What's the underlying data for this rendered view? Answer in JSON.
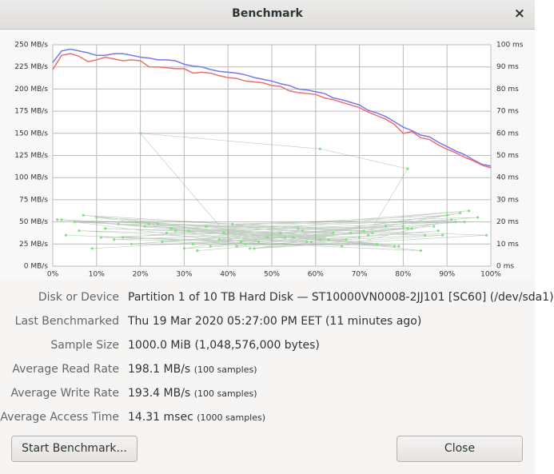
{
  "window": {
    "title": "Benchmark",
    "close": "×"
  },
  "chart_data": {
    "type": "line",
    "xlim": [
      0,
      100
    ],
    "xticks": [
      {
        "value": 0,
        "label": "0%"
      },
      {
        "value": 10,
        "label": "10%"
      },
      {
        "value": 20,
        "label": "20%"
      },
      {
        "value": 30,
        "label": "30%"
      },
      {
        "value": 40,
        "label": "40%"
      },
      {
        "value": 50,
        "label": "50%"
      },
      {
        "value": 60,
        "label": "60%"
      },
      {
        "value": 70,
        "label": "70%"
      },
      {
        "value": 80,
        "label": "80%"
      },
      {
        "value": 90,
        "label": "90%"
      },
      {
        "value": 100,
        "label": "100%"
      }
    ],
    "ylim": [
      0,
      250
    ],
    "yticks": [
      {
        "value": 0,
        "label": "0 MB/s"
      },
      {
        "value": 25,
        "label": "25 MB/s"
      },
      {
        "value": 50,
        "label": "50 MB/s"
      },
      {
        "value": 75,
        "label": "75 MB/s"
      },
      {
        "value": 100,
        "label": "100 MB/s"
      },
      {
        "value": 125,
        "label": "125 MB/s"
      },
      {
        "value": 150,
        "label": "150 MB/s"
      },
      {
        "value": 175,
        "label": "175 MB/s"
      },
      {
        "value": 200,
        "label": "200 MB/s"
      },
      {
        "value": 225,
        "label": "225 MB/s"
      },
      {
        "value": 250,
        "label": "250 MB/s"
      }
    ],
    "y2lim": [
      0,
      100
    ],
    "y2ticks": [
      {
        "value": 0,
        "label": "0 ms"
      },
      {
        "value": 10,
        "label": "10 ms"
      },
      {
        "value": 20,
        "label": "20 ms"
      },
      {
        "value": 30,
        "label": "30 ms"
      },
      {
        "value": 40,
        "label": "40 ms"
      },
      {
        "value": 50,
        "label": "50 ms"
      },
      {
        "value": 60,
        "label": "60 ms"
      },
      {
        "value": 70,
        "label": "70 ms"
      },
      {
        "value": 80,
        "label": "80 ms"
      },
      {
        "value": 90,
        "label": "90 ms"
      },
      {
        "value": 100,
        "label": "100 ms"
      }
    ],
    "grid": true,
    "series": [
      {
        "type": "line",
        "color": "#7777ee",
        "x": [
          0,
          2,
          4,
          6,
          8,
          10,
          12,
          14,
          16,
          18,
          20,
          22,
          24,
          26,
          28,
          30,
          32,
          34,
          36,
          38,
          40,
          42,
          44,
          46,
          48,
          50,
          52,
          54,
          56,
          58,
          60,
          62,
          64,
          66,
          68,
          70,
          72,
          74,
          76,
          78,
          80,
          82,
          84,
          86,
          88,
          90,
          92,
          94,
          96,
          98,
          100
        ],
        "values": [
          230,
          243,
          245,
          243,
          241,
          238,
          238,
          240,
          240,
          238,
          236,
          235,
          233,
          233,
          232,
          228,
          226,
          225,
          222,
          220,
          219,
          218,
          216,
          213,
          211,
          209,
          206,
          204,
          200,
          199,
          197,
          195,
          190,
          188,
          185,
          182,
          176,
          173,
          169,
          163,
          157,
          153,
          148,
          146,
          140,
          135,
          130,
          126,
          120,
          115,
          113
        ]
      },
      {
        "type": "line",
        "color": "#ee6e6e",
        "x": [
          0,
          2,
          4,
          6,
          8,
          10,
          12,
          14,
          16,
          18,
          20,
          22,
          24,
          26,
          28,
          30,
          32,
          34,
          36,
          38,
          40,
          42,
          44,
          46,
          48,
          50,
          52,
          54,
          56,
          58,
          60,
          62,
          64,
          66,
          68,
          70,
          72,
          74,
          76,
          78,
          80,
          82,
          84,
          86,
          88,
          90,
          92,
          94,
          96,
          98,
          100
        ],
        "values": [
          222,
          238,
          240,
          237,
          231,
          233,
          236,
          234,
          232,
          233,
          232,
          225,
          225,
          224,
          223,
          223,
          218,
          219,
          218,
          215,
          213,
          212,
          209,
          208,
          207,
          204,
          203,
          198,
          196,
          195,
          194,
          190,
          188,
          185,
          182,
          179,
          174,
          170,
          166,
          160,
          150,
          152,
          145,
          143,
          137,
          132,
          128,
          123,
          119,
          114,
          111
        ]
      },
      {
        "type": "scatter",
        "axis": "y2",
        "color": "#7fe27f",
        "x": [
          3,
          47,
          82,
          15,
          66,
          91,
          28,
          55,
          9,
          73,
          38,
          97,
          21,
          60,
          5,
          44,
          88,
          33,
          70,
          12,
          52,
          79,
          25,
          94,
          41,
          63,
          7,
          85,
          30,
          57,
          18,
          76,
          49,
          2,
          68,
          93,
          36,
          81,
          14,
          59,
          24,
          99,
          46,
          71,
          10,
          53,
          87,
          32,
          64,
          19,
          43,
          90,
          27,
          78,
          6,
          50,
          61,
          35,
          84,
          16,
          95,
          39,
          74,
          22,
          56,
          1,
          67,
          45,
          89,
          31,
          80,
          11,
          58,
          26,
          92,
          42,
          20,
          61,
          81,
          72
        ],
        "values": [
          14,
          11,
          17,
          19,
          9,
          21,
          16,
          13,
          8,
          15,
          12,
          22,
          18,
          14,
          20,
          10,
          16,
          7,
          13,
          17,
          15,
          9,
          11,
          20,
          19,
          12,
          23,
          14,
          8,
          16,
          10,
          18,
          13,
          21,
          15,
          24,
          9,
          17,
          12,
          11,
          19,
          14,
          8,
          16,
          22,
          13,
          18,
          10,
          15,
          20,
          11,
          23,
          17,
          9,
          16,
          14,
          12,
          18,
          7,
          13,
          25,
          15,
          10,
          19,
          17,
          21,
          12,
          8,
          14,
          16,
          18,
          13,
          11,
          15,
          20,
          9,
          60,
          53,
          44,
          14
        ]
      }
    ]
  },
  "details": [
    {
      "label": "Disk or Device",
      "value": "Partition 1 of 10 TB Hard Disk — ST10000VN0008-2JJ101 [SC60] (/dev/sda1)"
    },
    {
      "label": "Last Benchmarked",
      "value": "Thu 19 Mar 2020 05:27:00 PM EET (11 minutes ago)"
    },
    {
      "label": "Sample Size",
      "value": "1000.0 MiB (1,048,576,000 bytes)"
    },
    {
      "label": "Average Read Rate",
      "value": "198.1 MB/s",
      "note": "(100 samples)"
    },
    {
      "label": "Average Write Rate",
      "value": "193.4 MB/s",
      "note": "(100 samples)"
    },
    {
      "label": "Average Access Time",
      "value": "14.31 msec",
      "note": "(1000 samples)"
    }
  ],
  "buttons": [
    "Start Benchmark...",
    "Close"
  ]
}
